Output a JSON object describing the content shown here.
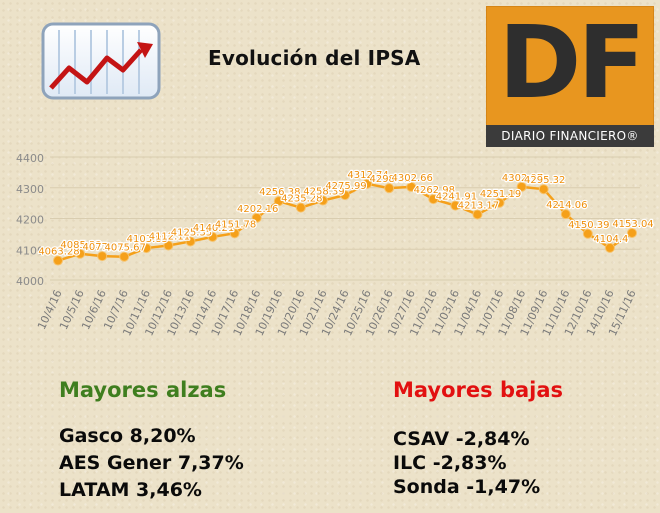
{
  "title": "Evolución del IPSA",
  "logo": {
    "letters": "DF",
    "band": "DIARIO FINANCIERO®",
    "color": "#e8961f"
  },
  "icons": {
    "chart": "trend-chart-icon"
  },
  "colors": {
    "line": "#f5a01a",
    "grid": "#d9cdb0",
    "gains": "#3f7e1f",
    "losses": "#e21010"
  },
  "chart_data": {
    "type": "line",
    "title": "Evolución del IPSA",
    "xlabel": "",
    "ylabel": "",
    "ylim": [
      4000,
      4400
    ],
    "yticks": [
      4000,
      4100,
      4200,
      4300,
      4400
    ],
    "grid": true,
    "categories": [
      "10/4/16",
      "10/5/16",
      "10/6/16",
      "10/7/16",
      "10/11/16",
      "10/12/16",
      "10/13/16",
      "10/14/16",
      "10/17/16",
      "10/18/16",
      "10/19/16",
      "10/20/16",
      "10/21/16",
      "10/24/16",
      "10/25/16",
      "10/26/16",
      "10/27/16",
      "11/02/16",
      "11/03/16",
      "11/04/16",
      "11/07/16",
      "11/08/16",
      "11/09/16",
      "11/10/16",
      "12/10/16",
      "14/10/16",
      "15/11/16"
    ],
    "series": [
      {
        "values": [
          4063.28,
          4085.33,
          4077.62,
          4075.67,
          4103.85,
          4112.11,
          4125.35,
          4140.21,
          4151.78,
          4202.16,
          4256.38,
          4235.28,
          4258.39,
          4275.99,
          4312.74,
          4298.62,
          4302.66,
          4262.98,
          4241.91,
          4213.17,
          4251.19,
          4302.97,
          4295.32,
          4214.06,
          4150.39,
          4104.4,
          4153.04
        ],
        "labels": [
          "4063.28",
          "4085.33",
          "4077.62",
          "4075.67",
          "4103.85",
          "4112.11",
          "4125.35",
          "4140.21",
          "4151.78",
          "4202.16",
          "4256.38",
          "4235.28",
          "4258.39",
          "4275.99",
          "4312.74",
          "4298.62",
          "4302.66",
          "4262.98",
          "4241.91",
          "4213.17",
          "4251.19",
          "4302.97",
          "4295.32",
          "4214.06",
          "4150.39",
          "4104.4",
          "4153.04"
        ]
      }
    ]
  },
  "gainers": {
    "title": "Mayores alzas",
    "items": [
      "Gasco 8,20%",
      "AES Gener 7,37%",
      "LATAM 3,46%"
    ]
  },
  "losers": {
    "title": "Mayores bajas",
    "items": [
      "CSAV -2,84%",
      "ILC -2,83%",
      "Sonda -1,47%"
    ]
  }
}
